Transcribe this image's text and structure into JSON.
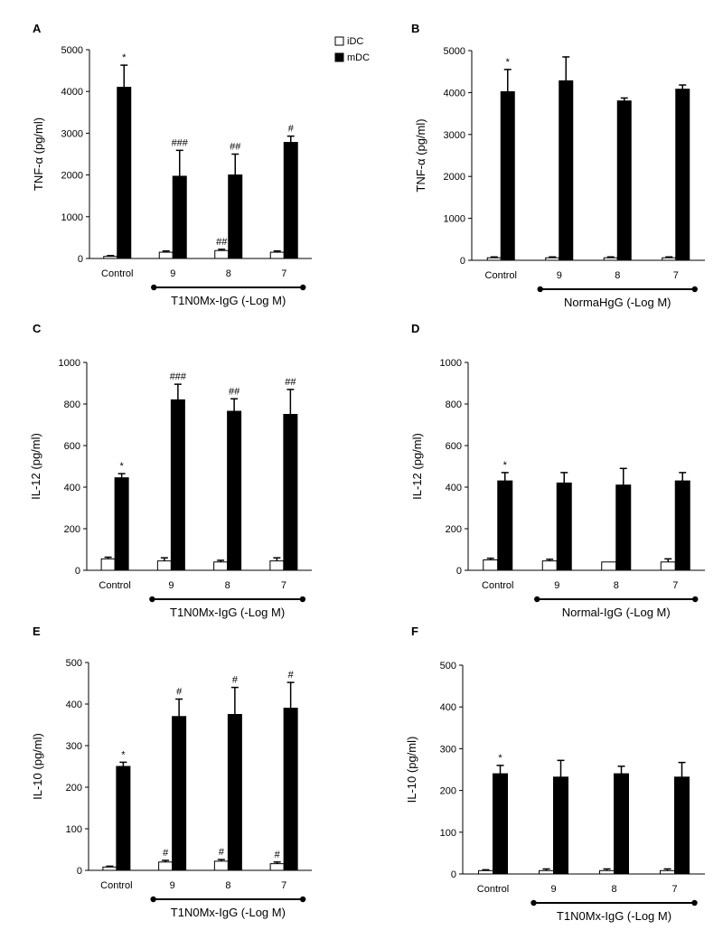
{
  "legend": {
    "items": [
      {
        "label": "iDC",
        "fill": "#ffffff"
      },
      {
        "label": "mDC",
        "fill": "#000000"
      }
    ]
  },
  "chart_data": [
    {
      "type": "bar",
      "panel": "A",
      "categories": [
        "Control",
        "9",
        "8",
        "7"
      ],
      "ylabel": "TNF-α (pg/ml)",
      "xlabel": "T1N0Mx-IgG (-Log M)",
      "ylim": [
        0,
        5000
      ],
      "yticks": [
        0,
        1000,
        2000,
        3000,
        4000,
        5000
      ],
      "series": [
        {
          "name": "iDC",
          "values": [
            50,
            150,
            190,
            150
          ],
          "errors": [
            20,
            30,
            30,
            30
          ],
          "annotations": [
            "",
            "",
            "##",
            ""
          ]
        },
        {
          "name": "mDC",
          "values": [
            4100,
            1970,
            2000,
            2780
          ],
          "errors": [
            530,
            620,
            500,
            150
          ],
          "annotations": [
            "*",
            "###",
            "##",
            "#"
          ]
        }
      ]
    },
    {
      "type": "bar",
      "panel": "B",
      "categories": [
        "Control",
        "9",
        "8",
        "7"
      ],
      "ylabel": "TNF-α (pg/ml)",
      "xlabel": "NormaHgG (-Log M)",
      "ylim": [
        0,
        5000
      ],
      "yticks": [
        0,
        1000,
        2000,
        3000,
        4000,
        5000
      ],
      "series": [
        {
          "name": "iDC",
          "values": [
            60,
            60,
            60,
            60
          ],
          "errors": [
            20,
            20,
            20,
            20
          ],
          "annotations": [
            "",
            "",
            "",
            ""
          ]
        },
        {
          "name": "mDC",
          "values": [
            4020,
            4280,
            3800,
            4080
          ],
          "errors": [
            530,
            570,
            70,
            100
          ],
          "annotations": [
            "*",
            "",
            "",
            ""
          ]
        }
      ]
    },
    {
      "type": "bar",
      "panel": "C",
      "categories": [
        "Control",
        "9",
        "8",
        "7"
      ],
      "ylabel": "IL-12 (pg/ml)",
      "xlabel": "T1N0Mx-IgG (-Log M)",
      "ylim": [
        0,
        1000
      ],
      "yticks": [
        0,
        200,
        400,
        600,
        800,
        1000
      ],
      "series": [
        {
          "name": "iDC",
          "values": [
            55,
            45,
            40,
            45
          ],
          "errors": [
            8,
            15,
            8,
            15
          ],
          "annotations": [
            "",
            "",
            "",
            ""
          ]
        },
        {
          "name": "mDC",
          "values": [
            445,
            820,
            765,
            750
          ],
          "errors": [
            20,
            75,
            60,
            120
          ],
          "annotations": [
            "*",
            "###",
            "##",
            "##"
          ]
        }
      ]
    },
    {
      "type": "bar",
      "panel": "D",
      "categories": [
        "Control",
        "9",
        "8",
        "7"
      ],
      "ylabel": "IL-12 (pg/ml)",
      "xlabel": "Normal-IgG (-Log M)",
      "ylim": [
        0,
        1000
      ],
      "yticks": [
        0,
        200,
        400,
        600,
        800,
        1000
      ],
      "series": [
        {
          "name": "iDC",
          "values": [
            50,
            45,
            40,
            40
          ],
          "errors": [
            8,
            8,
            0,
            15
          ],
          "annotations": [
            "",
            "",
            "",
            ""
          ]
        },
        {
          "name": "mDC",
          "values": [
            430,
            420,
            410,
            430
          ],
          "errors": [
            40,
            50,
            80,
            40
          ],
          "annotations": [
            "*",
            "",
            "",
            ""
          ]
        }
      ]
    },
    {
      "type": "bar",
      "panel": "E",
      "categories": [
        "Control",
        "9",
        "8",
        "7"
      ],
      "ylabel": "IL-10 (pg/ml)",
      "xlabel": "T1N0Mx-IgG (-Log M)",
      "ylim": [
        0,
        500
      ],
      "yticks": [
        0,
        100,
        200,
        300,
        400,
        500
      ],
      "series": [
        {
          "name": "iDC",
          "values": [
            8,
            20,
            22,
            16
          ],
          "errors": [
            2,
            4,
            4,
            4
          ],
          "annotations": [
            "",
            "#",
            "#",
            "#"
          ]
        },
        {
          "name": "mDC",
          "values": [
            250,
            370,
            375,
            390
          ],
          "errors": [
            10,
            42,
            65,
            62
          ],
          "annotations": [
            "*",
            "#",
            "#",
            "#"
          ]
        }
      ]
    },
    {
      "type": "bar",
      "panel": "F",
      "categories": [
        "Control",
        "9",
        "8",
        "7"
      ],
      "ylabel": "IL-10 (pg/ml)",
      "xlabel": "T1N0Mx-IgG (-Log M)",
      "ylim": [
        0,
        500
      ],
      "yticks": [
        0,
        100,
        200,
        300,
        400,
        500
      ],
      "series": [
        {
          "name": "iDC",
          "values": [
            8,
            8,
            8,
            8
          ],
          "errors": [
            2,
            4,
            4,
            4
          ],
          "annotations": [
            "",
            "",
            "",
            ""
          ]
        },
        {
          "name": "mDC",
          "values": [
            240,
            232,
            240,
            232
          ],
          "errors": [
            20,
            40,
            18,
            35
          ],
          "annotations": [
            "*",
            "",
            "",
            ""
          ]
        }
      ]
    }
  ]
}
